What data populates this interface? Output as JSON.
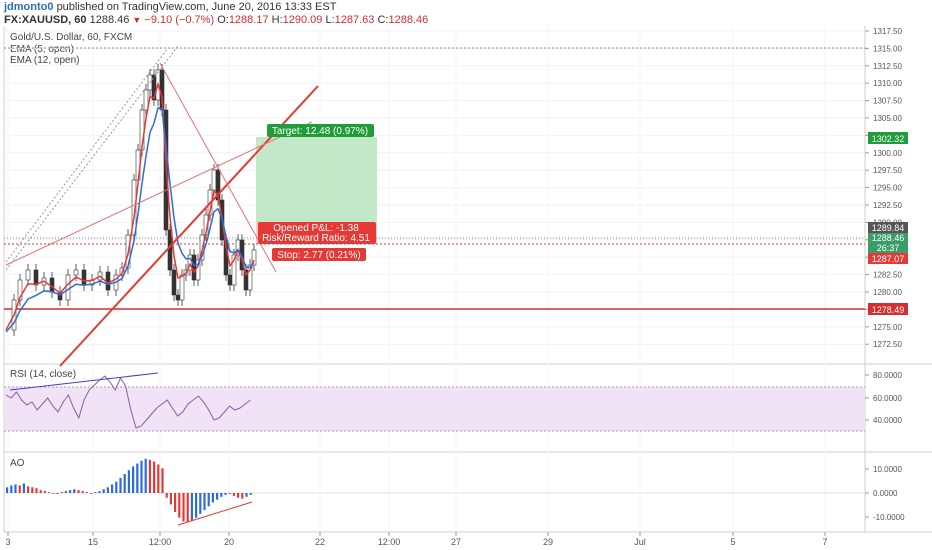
{
  "header": {
    "author": "jdmonto0",
    "published_text": "published on TradingView.com, June 20, 2016 13:33 EST",
    "symbol": "FX:XAUUSD, 60",
    "last": "1288.46",
    "change": "−9.10 (−0.7%)",
    "o_label": "O:",
    "o_value": "1288.17",
    "h_label": "H:",
    "h_value": "1290.09",
    "l_label": "L:",
    "l_value": "1287.63",
    "c_label": "C:",
    "c_value": "1288.46"
  },
  "main_pane": {
    "title": "Gold/U.S. Dollar, 60, FXCM",
    "ema1": "EMA (5, open)",
    "ema2": "EMA (12, open)",
    "y_ticks": [
      "1317.50",
      "1315.00",
      "1312.50",
      "1310.00",
      "1307.50",
      "1305.00",
      "1302.50",
      "1300.00",
      "1297.50",
      "1295.00",
      "1292.50",
      "1290.00",
      "1287.50",
      "1285.00",
      "1282.50",
      "1280.00",
      "1277.50",
      "1275.00",
      "1272.50"
    ],
    "price_tags": {
      "target_price": "1302.32",
      "current_price": "1289.84",
      "current_close": "1288.46",
      "countdown": "26:37",
      "stop_price": "1287.07",
      "support": "1278.49"
    },
    "position": {
      "target_label": "Target: 12.48 (0.97%)",
      "pnl_label": "Opened P&L: -1.38",
      "rr_label": "Risk/Reward Ratio: 4.51",
      "stop_label": "Stop: 2.77 (0.21%)"
    }
  },
  "rsi_pane": {
    "title": "RSI (14, close)",
    "y_ticks": [
      "80.0000",
      "60.0000",
      "40.0000"
    ]
  },
  "ao_pane": {
    "title": "AO",
    "y_ticks": [
      "10.0000",
      "0.0000",
      "-10.0000"
    ]
  },
  "x_axis": {
    "ticks": [
      "3",
      "15",
      "12:00",
      "20",
      "22",
      "12:00",
      "27",
      "29",
      "Jul",
      "5",
      "7"
    ]
  },
  "colors": {
    "up": "#2f6bd8",
    "down": "#e53935",
    "target": "#1f9d3a",
    "stop": "#e53935",
    "rsi": "#8e5aa8"
  }
}
